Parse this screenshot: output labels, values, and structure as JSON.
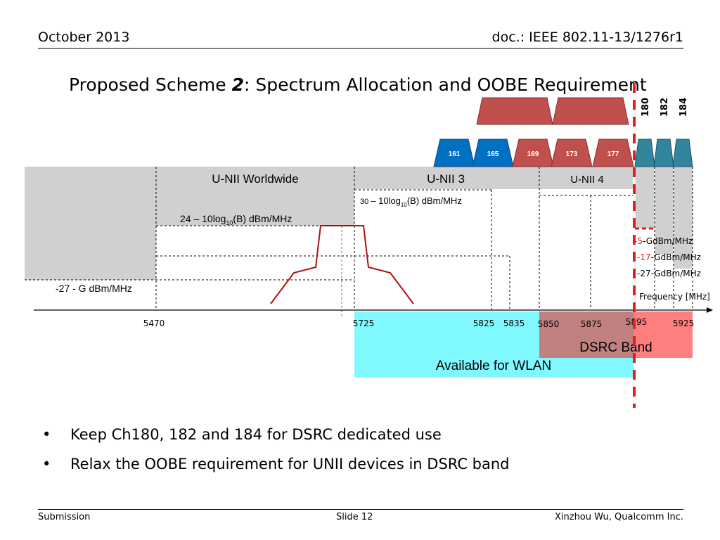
{
  "header": {
    "date": "October 2013",
    "doc": "doc.: IEEE 802.11-13/1276r1"
  },
  "title": {
    "prefix": "Proposed Scheme ",
    "number": "2",
    "suffix": ": Spectrum Allocation and OOBE Requirement"
  },
  "bands": {
    "unii_worldwide": "U-NII Worldwide",
    "unii3": "U-NII 3",
    "unii4": "U-NII 4",
    "dsrc": "DSRC Band",
    "wlan": "Available for WLAN"
  },
  "channels_blue": [
    "161",
    "165"
  ],
  "channels_red": [
    "169",
    "173",
    "177"
  ],
  "dsrc_channels": [
    "180",
    "182",
    "184"
  ],
  "limits": {
    "unii_ww": {
      "pre": "24 – 10log",
      "sub": "10",
      "post": "(B) dBm/MHz"
    },
    "unii3": {
      "pre": "– 10log",
      "num": "30",
      "sub": "10",
      "post": "(B) dBm/MHz"
    },
    "g": "-27 - G dBm/MHz",
    "dsrc": [
      {
        "value": "-5",
        "unit": "-GdBm/MHz"
      },
      {
        "value": "-17",
        "unit": "-GdBm/MHz"
      },
      {
        "value": "-27",
        "unit": "-GdBm/MHz"
      }
    ]
  },
  "axis": {
    "label": "Frequency [MHz]",
    "ticks": [
      "5470",
      "5725",
      "5825",
      "5835",
      "5850",
      "5875",
      "5895",
      "5925"
    ]
  },
  "colors": {
    "blue": "#0070c0",
    "red": "#c0504d",
    "teal": "#31859c",
    "gray": "#d0d0d0",
    "cyan": "#80f8ff",
    "pink": "#ff7f7f",
    "mauve": "#c08080",
    "dashed_red": "#e02020",
    "mask": "#b01010"
  },
  "bullets": [
    "Keep Ch180, 182 and 184 for DSRC dedicated use",
    "Relax the OOBE requirement for UNII devices in DSRC band"
  ],
  "footer": {
    "left": "Submission",
    "center": "Slide 12",
    "right": "Xinzhou Wu, Qualcomm Inc."
  }
}
